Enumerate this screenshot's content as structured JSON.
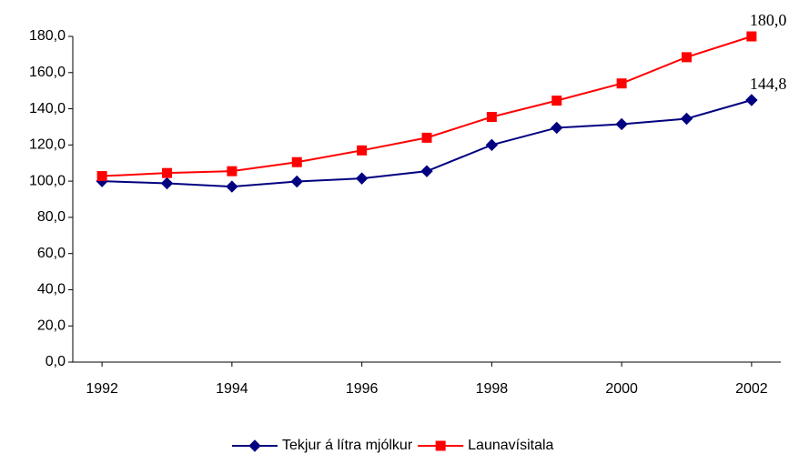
{
  "chart_data": {
    "type": "line",
    "x": [
      1992,
      1993,
      1994,
      1995,
      1996,
      1997,
      1998,
      1999,
      2000,
      2001,
      2002
    ],
    "series": [
      {
        "name": "Tekjur á lítra mjólkur",
        "color": "#000080",
        "marker": "diamond",
        "values": [
          100,
          98.8,
          97,
          99.8,
          101.5,
          105.5,
          120,
          129.5,
          131.5,
          134.5,
          144.8
        ],
        "value_labels": [
          null,
          null,
          null,
          null,
          null,
          null,
          null,
          null,
          null,
          null,
          "144,8"
        ]
      },
      {
        "name": "Launavísitala",
        "color": "#ff0000",
        "marker": "square",
        "values": [
          102.8,
          104.5,
          105.5,
          110.5,
          117,
          124,
          135.5,
          144.5,
          154,
          168.5,
          180
        ],
        "value_labels": [
          null,
          null,
          null,
          null,
          null,
          null,
          null,
          null,
          null,
          null,
          "180,0"
        ]
      }
    ],
    "xlim": [
      1991.55,
      2002.45
    ],
    "xticks": [
      1992,
      1994,
      1996,
      1998,
      2000,
      2002
    ],
    "ylim": [
      0,
      180
    ],
    "yticks": [
      {
        "value": 0,
        "label": "0,0"
      },
      {
        "value": 20,
        "label": "20,0"
      },
      {
        "value": 40,
        "label": "40,0"
      },
      {
        "value": 60,
        "label": "60,0"
      },
      {
        "value": 80,
        "label": "80,0"
      },
      {
        "value": 100,
        "label": "100,0"
      },
      {
        "value": 120,
        "label": "120,0"
      },
      {
        "value": 140,
        "label": "140,0"
      },
      {
        "value": 160,
        "label": "160,0"
      },
      {
        "value": 180,
        "label": "180,0"
      }
    ],
    "legend": "bottom"
  }
}
